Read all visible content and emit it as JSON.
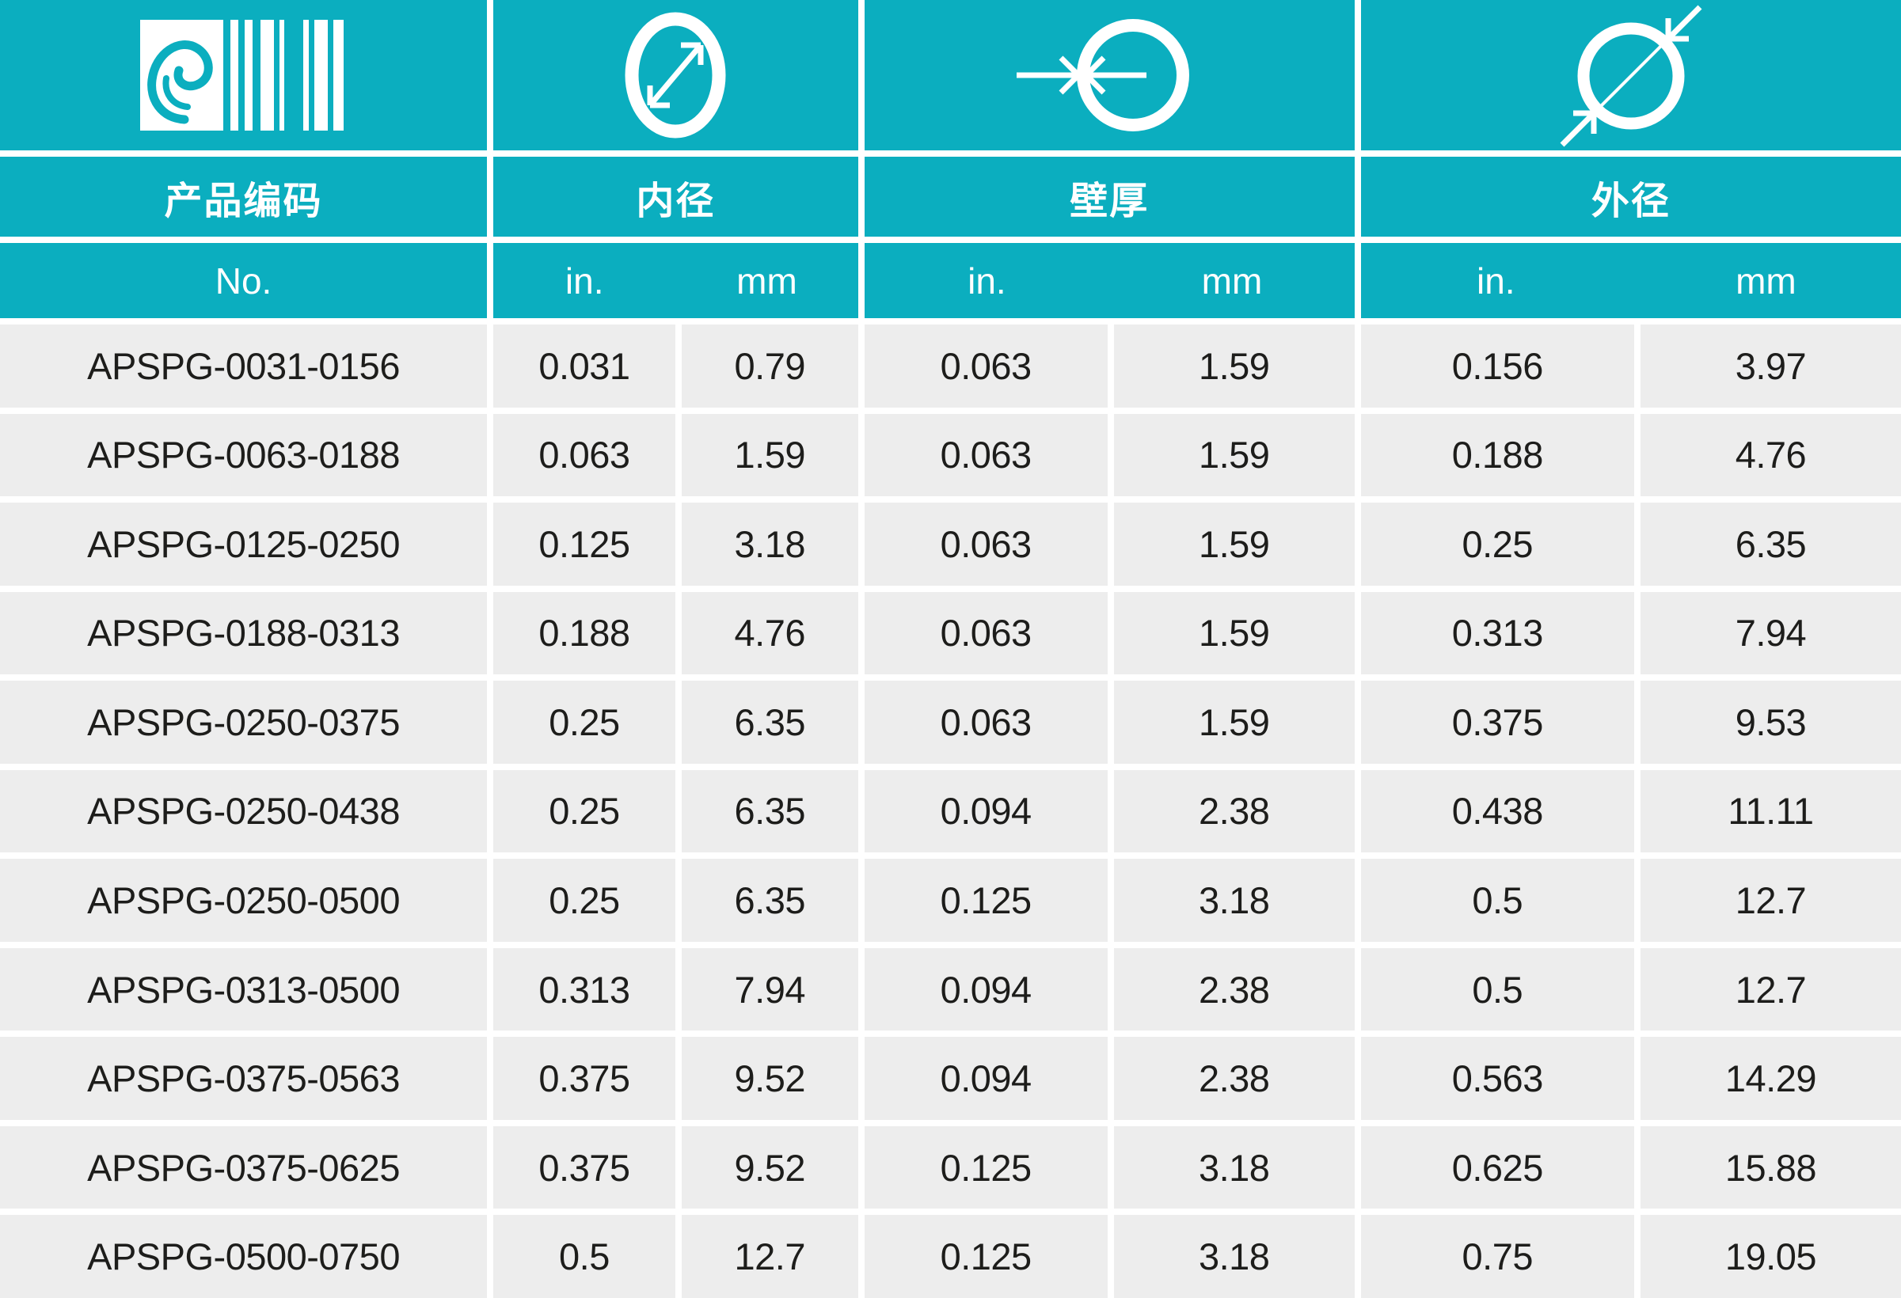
{
  "colors": {
    "teal": "#0baebf",
    "row_gray": "#ededed",
    "text_dark": "#1d1d1b",
    "header_text": "#ffffff"
  },
  "header": {
    "icons": [
      {
        "name": "brand-logo-barcode"
      },
      {
        "name": "inner-diameter-icon"
      },
      {
        "name": "wall-thickness-icon"
      },
      {
        "name": "outer-diameter-icon"
      }
    ],
    "groups": [
      {
        "label": "产品编码",
        "units": [
          "No."
        ]
      },
      {
        "label": "内径",
        "units": [
          "in.",
          "mm"
        ]
      },
      {
        "label": "壁厚",
        "units": [
          "in.",
          "mm"
        ]
      },
      {
        "label": "外径",
        "units": [
          "in.",
          "mm"
        ]
      }
    ]
  },
  "table": {
    "rows": [
      [
        "APSPG-0031-0156",
        "0.031",
        "0.79",
        "0.063",
        "1.59",
        "0.156",
        "3.97"
      ],
      [
        "APSPG-0063-0188",
        "0.063",
        "1.59",
        "0.063",
        "1.59",
        "0.188",
        "4.76"
      ],
      [
        "APSPG-0125-0250",
        "0.125",
        "3.18",
        "0.063",
        "1.59",
        "0.25",
        "6.35"
      ],
      [
        "APSPG-0188-0313",
        "0.188",
        "4.76",
        "0.063",
        "1.59",
        "0.313",
        "7.94"
      ],
      [
        "APSPG-0250-0375",
        "0.25",
        "6.35",
        "0.063",
        "1.59",
        "0.375",
        "9.53"
      ],
      [
        "APSPG-0250-0438",
        "0.25",
        "6.35",
        "0.094",
        "2.38",
        "0.438",
        "11.11"
      ],
      [
        "APSPG-0250-0500",
        "0.25",
        "6.35",
        "0.125",
        "3.18",
        "0.5",
        "12.7"
      ],
      [
        "APSPG-0313-0500",
        "0.313",
        "7.94",
        "0.094",
        "2.38",
        "0.5",
        "12.7"
      ],
      [
        "APSPG-0375-0563",
        "0.375",
        "9.52",
        "0.094",
        "2.38",
        "0.563",
        "14.29"
      ],
      [
        "APSPG-0375-0625",
        "0.375",
        "9.52",
        "0.125",
        "3.18",
        "0.625",
        "15.88"
      ],
      [
        "APSPG-0500-0750",
        "0.5",
        "12.7",
        "0.125",
        "3.18",
        "0.75",
        "19.05"
      ]
    ]
  }
}
